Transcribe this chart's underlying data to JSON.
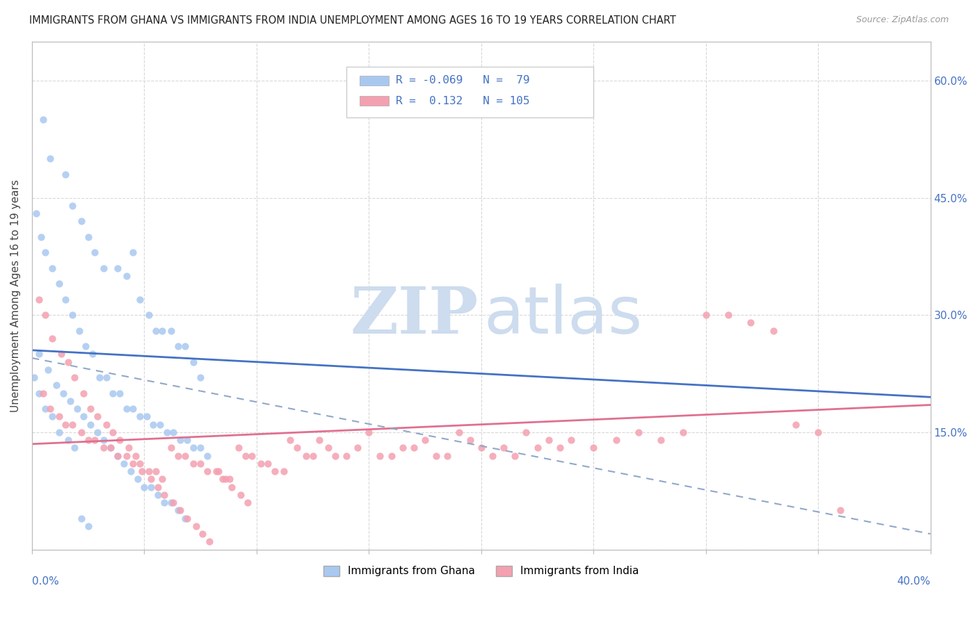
{
  "title": "IMMIGRANTS FROM GHANA VS IMMIGRANTS FROM INDIA UNEMPLOYMENT AMONG AGES 16 TO 19 YEARS CORRELATION CHART",
  "source": "Source: ZipAtlas.com",
  "ylabel": "Unemployment Among Ages 16 to 19 years",
  "right_yticklabels": [
    "",
    "15.0%",
    "30.0%",
    "45.0%",
    "60.0%"
  ],
  "xlim": [
    0.0,
    0.4
  ],
  "ylim": [
    0.0,
    0.65
  ],
  "ghana_color": "#a8c8f0",
  "india_color": "#f4a0b0",
  "ghana_R": -0.069,
  "ghana_N": 79,
  "india_R": 0.132,
  "india_N": 105,
  "ghana_scatter_x": [
    0.005,
    0.008,
    0.015,
    0.018,
    0.022,
    0.025,
    0.028,
    0.032,
    0.038,
    0.042,
    0.045,
    0.048,
    0.052,
    0.055,
    0.058,
    0.062,
    0.065,
    0.068,
    0.072,
    0.075,
    0.002,
    0.004,
    0.006,
    0.009,
    0.012,
    0.015,
    0.018,
    0.021,
    0.024,
    0.027,
    0.03,
    0.033,
    0.036,
    0.039,
    0.042,
    0.045,
    0.048,
    0.051,
    0.054,
    0.057,
    0.06,
    0.063,
    0.066,
    0.069,
    0.072,
    0.075,
    0.078,
    0.003,
    0.007,
    0.011,
    0.014,
    0.017,
    0.02,
    0.023,
    0.026,
    0.029,
    0.032,
    0.035,
    0.038,
    0.041,
    0.044,
    0.047,
    0.05,
    0.053,
    0.056,
    0.059,
    0.062,
    0.065,
    0.068,
    0.001,
    0.003,
    0.006,
    0.009,
    0.012,
    0.016,
    0.019,
    0.022,
    0.025
  ],
  "ghana_scatter_y": [
    0.55,
    0.5,
    0.48,
    0.44,
    0.42,
    0.4,
    0.38,
    0.36,
    0.36,
    0.35,
    0.38,
    0.32,
    0.3,
    0.28,
    0.28,
    0.28,
    0.26,
    0.26,
    0.24,
    0.22,
    0.43,
    0.4,
    0.38,
    0.36,
    0.34,
    0.32,
    0.3,
    0.28,
    0.26,
    0.25,
    0.22,
    0.22,
    0.2,
    0.2,
    0.18,
    0.18,
    0.17,
    0.17,
    0.16,
    0.16,
    0.15,
    0.15,
    0.14,
    0.14,
    0.13,
    0.13,
    0.12,
    0.25,
    0.23,
    0.21,
    0.2,
    0.19,
    0.18,
    0.17,
    0.16,
    0.15,
    0.14,
    0.13,
    0.12,
    0.11,
    0.1,
    0.09,
    0.08,
    0.08,
    0.07,
    0.06,
    0.06,
    0.05,
    0.04,
    0.22,
    0.2,
    0.18,
    0.17,
    0.15,
    0.14,
    0.13,
    0.04,
    0.03
  ],
  "india_scatter_x": [
    0.005,
    0.008,
    0.012,
    0.015,
    0.018,
    0.022,
    0.025,
    0.028,
    0.032,
    0.035,
    0.038,
    0.042,
    0.045,
    0.048,
    0.052,
    0.055,
    0.058,
    0.062,
    0.065,
    0.068,
    0.072,
    0.075,
    0.078,
    0.082,
    0.085,
    0.088,
    0.092,
    0.095,
    0.098,
    0.102,
    0.105,
    0.108,
    0.112,
    0.115,
    0.118,
    0.122,
    0.125,
    0.128,
    0.132,
    0.135,
    0.14,
    0.145,
    0.15,
    0.155,
    0.16,
    0.165,
    0.17,
    0.175,
    0.18,
    0.185,
    0.19,
    0.195,
    0.2,
    0.205,
    0.21,
    0.215,
    0.22,
    0.225,
    0.23,
    0.235,
    0.24,
    0.25,
    0.26,
    0.27,
    0.28,
    0.29,
    0.3,
    0.31,
    0.32,
    0.33,
    0.34,
    0.35,
    0.003,
    0.006,
    0.009,
    0.013,
    0.016,
    0.019,
    0.023,
    0.026,
    0.029,
    0.033,
    0.036,
    0.039,
    0.043,
    0.046,
    0.049,
    0.053,
    0.056,
    0.059,
    0.063,
    0.066,
    0.069,
    0.073,
    0.076,
    0.079,
    0.083,
    0.086,
    0.089,
    0.093,
    0.096,
    0.36
  ],
  "india_scatter_y": [
    0.2,
    0.18,
    0.17,
    0.16,
    0.16,
    0.15,
    0.14,
    0.14,
    0.13,
    0.13,
    0.12,
    0.12,
    0.11,
    0.11,
    0.1,
    0.1,
    0.09,
    0.13,
    0.12,
    0.12,
    0.11,
    0.11,
    0.1,
    0.1,
    0.09,
    0.09,
    0.13,
    0.12,
    0.12,
    0.11,
    0.11,
    0.1,
    0.1,
    0.14,
    0.13,
    0.12,
    0.12,
    0.14,
    0.13,
    0.12,
    0.12,
    0.13,
    0.15,
    0.12,
    0.12,
    0.13,
    0.13,
    0.14,
    0.12,
    0.12,
    0.15,
    0.14,
    0.13,
    0.12,
    0.13,
    0.12,
    0.15,
    0.13,
    0.14,
    0.13,
    0.14,
    0.13,
    0.14,
    0.15,
    0.14,
    0.15,
    0.3,
    0.3,
    0.29,
    0.28,
    0.16,
    0.15,
    0.32,
    0.3,
    0.27,
    0.25,
    0.24,
    0.22,
    0.2,
    0.18,
    0.17,
    0.16,
    0.15,
    0.14,
    0.13,
    0.12,
    0.1,
    0.09,
    0.08,
    0.07,
    0.06,
    0.05,
    0.04,
    0.03,
    0.02,
    0.01,
    0.1,
    0.09,
    0.08,
    0.07,
    0.06,
    0.05
  ],
  "ghana_trend_y_start": 0.255,
  "ghana_trend_y_end": 0.195,
  "india_trend_y_start": 0.135,
  "india_trend_y_end": 0.185,
  "dashed_trend_y_start": 0.245,
  "dashed_trend_y_end": 0.02,
  "watermark_color": "#cddcee",
  "background_color": "#ffffff",
  "grid_color": "#d8d8d8"
}
